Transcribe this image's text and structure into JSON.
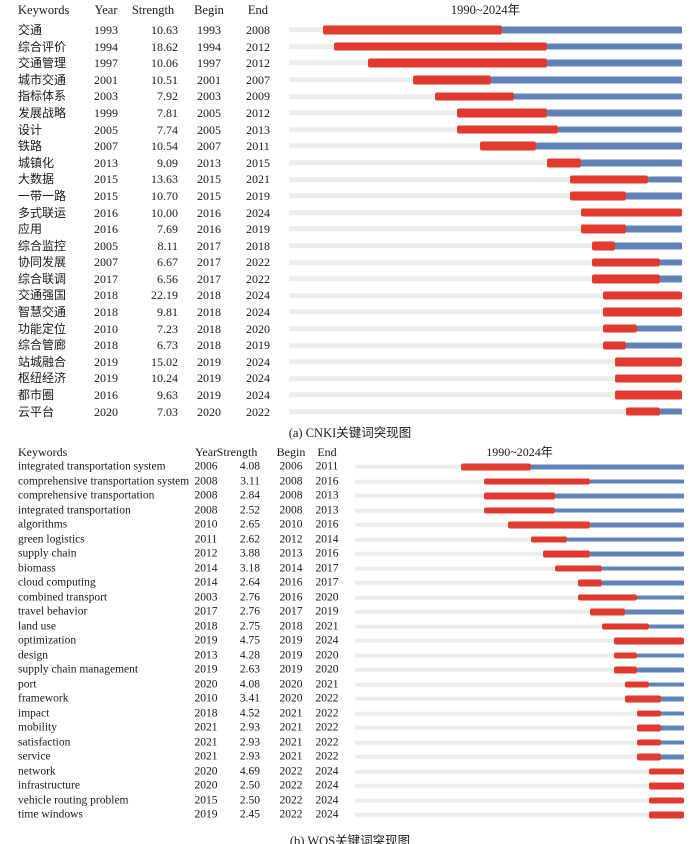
{
  "colors": {
    "burst_red": "#e23a2c",
    "timeline_blue": "#5f82b8",
    "track_gray": "#e9eee8",
    "text": "#1a1a1a",
    "background": "#ffffff"
  },
  "chart_data": [
    {
      "type": "bar",
      "subtype": "keyword-burst-timeline",
      "caption": "(a)  CNKI关键词突现图",
      "timeline_title": "1990~2024年",
      "columns": {
        "keywords": "Keywords",
        "year": "Year",
        "strength": "Strength",
        "begin": "Begin",
        "end": "End"
      },
      "xlim": [
        1990,
        2024
      ],
      "rows": [
        {
          "keyword": "交通",
          "year": 1993,
          "strength": "10.63",
          "begin": 1993,
          "end": 2008
        },
        {
          "keyword": "综合评价",
          "year": 1994,
          "strength": "18.62",
          "begin": 1994,
          "end": 2012
        },
        {
          "keyword": "交通管理",
          "year": 1997,
          "strength": "10.06",
          "begin": 1997,
          "end": 2012
        },
        {
          "keyword": "城市交通",
          "year": 2001,
          "strength": "10.51",
          "begin": 2001,
          "end": 2007
        },
        {
          "keyword": "指标体系",
          "year": 2003,
          "strength": "7.92",
          "begin": 2003,
          "end": 2009
        },
        {
          "keyword": "发展战略",
          "year": 1999,
          "strength": "7.81",
          "begin": 2005,
          "end": 2012
        },
        {
          "keyword": "设计",
          "year": 2005,
          "strength": "7.74",
          "begin": 2005,
          "end": 2013
        },
        {
          "keyword": "铁路",
          "year": 2007,
          "strength": "10.54",
          "begin": 2007,
          "end": 2011
        },
        {
          "keyword": "城镇化",
          "year": 2013,
          "strength": "9.09",
          "begin": 2013,
          "end": 2015
        },
        {
          "keyword": "大数据",
          "year": 2015,
          "strength": "13.63",
          "begin": 2015,
          "end": 2021
        },
        {
          "keyword": "一带一路",
          "year": 2015,
          "strength": "10.70",
          "begin": 2015,
          "end": 2019
        },
        {
          "keyword": "多式联运",
          "year": 2016,
          "strength": "10.00",
          "begin": 2016,
          "end": 2024
        },
        {
          "keyword": "应用",
          "year": 2016,
          "strength": "7.69",
          "begin": 2016,
          "end": 2019
        },
        {
          "keyword": "综合监控",
          "year": 2005,
          "strength": "8.11",
          "begin": 2017,
          "end": 2018
        },
        {
          "keyword": "协同发展",
          "year": 2007,
          "strength": "6.67",
          "begin": 2017,
          "end": 2022
        },
        {
          "keyword": "综合联调",
          "year": 2017,
          "strength": "6.56",
          "begin": 2017,
          "end": 2022
        },
        {
          "keyword": "交通强国",
          "year": 2018,
          "strength": "22.19",
          "begin": 2018,
          "end": 2024
        },
        {
          "keyword": "智慧交通",
          "year": 2018,
          "strength": "9.81",
          "begin": 2018,
          "end": 2024
        },
        {
          "keyword": "功能定位",
          "year": 2010,
          "strength": "7.23",
          "begin": 2018,
          "end": 2020
        },
        {
          "keyword": "综合管廊",
          "year": 2018,
          "strength": "6.73",
          "begin": 2018,
          "end": 2019
        },
        {
          "keyword": "站城融合",
          "year": 2019,
          "strength": "15.02",
          "begin": 2019,
          "end": 2024
        },
        {
          "keyword": "枢纽经济",
          "year": 2019,
          "strength": "10.24",
          "begin": 2019,
          "end": 2024
        },
        {
          "keyword": "都市圈",
          "year": 2016,
          "strength": "9.63",
          "begin": 2019,
          "end": 2024
        },
        {
          "keyword": "云平台",
          "year": 2020,
          "strength": "7.03",
          "begin": 2020,
          "end": 2022
        }
      ]
    },
    {
      "type": "bar",
      "subtype": "keyword-burst-timeline",
      "caption": "(b)  WOS关键词突现图",
      "timeline_title": "1990~2024年",
      "columns": {
        "keywords": "Keywords",
        "year": "Year",
        "strength": "Strength",
        "begin": "Begin",
        "end": "End"
      },
      "xlim": [
        1997,
        2024
      ],
      "rows": [
        {
          "keyword": "integrated transportation system",
          "year": 2006,
          "strength": "4.08",
          "begin": 2006,
          "end": 2011
        },
        {
          "keyword": "comprehensive transportation system",
          "year": 2008,
          "strength": "3.11",
          "begin": 2008,
          "end": 2016
        },
        {
          "keyword": "comprehensive transportation",
          "year": 2008,
          "strength": "2.84",
          "begin": 2008,
          "end": 2013
        },
        {
          "keyword": "integrated transportation",
          "year": 2008,
          "strength": "2.52",
          "begin": 2008,
          "end": 2013
        },
        {
          "keyword": "algorithms",
          "year": 2010,
          "strength": "2.65",
          "begin": 2010,
          "end": 2016
        },
        {
          "keyword": "green logistics",
          "year": 2011,
          "strength": "2.62",
          "begin": 2012,
          "end": 2014
        },
        {
          "keyword": "supply chain",
          "year": 2012,
          "strength": "3.88",
          "begin": 2013,
          "end": 2016
        },
        {
          "keyword": "biomass",
          "year": 2014,
          "strength": "3.18",
          "begin": 2014,
          "end": 2017
        },
        {
          "keyword": "cloud computing",
          "year": 2014,
          "strength": "2.64",
          "begin": 2016,
          "end": 2017
        },
        {
          "keyword": "combined transport",
          "year": 2003,
          "strength": "2.76",
          "begin": 2016,
          "end": 2020
        },
        {
          "keyword": "travel behavior",
          "year": 2017,
          "strength": "2.76",
          "begin": 2017,
          "end": 2019
        },
        {
          "keyword": "land use",
          "year": 2018,
          "strength": "2.75",
          "begin": 2018,
          "end": 2021
        },
        {
          "keyword": "optimization",
          "year": 2019,
          "strength": "4.75",
          "begin": 2019,
          "end": 2024
        },
        {
          "keyword": "design",
          "year": 2013,
          "strength": "4.28",
          "begin": 2019,
          "end": 2020
        },
        {
          "keyword": "supply chain management",
          "year": 2019,
          "strength": "2.63",
          "begin": 2019,
          "end": 2020
        },
        {
          "keyword": "port",
          "year": 2020,
          "strength": "4.08",
          "begin": 2020,
          "end": 2021
        },
        {
          "keyword": "framework",
          "year": 2010,
          "strength": "3.41",
          "begin": 2020,
          "end": 2022
        },
        {
          "keyword": "impact",
          "year": 2018,
          "strength": "4.52",
          "begin": 2021,
          "end": 2022
        },
        {
          "keyword": "mobility",
          "year": 2021,
          "strength": "2.93",
          "begin": 2021,
          "end": 2022
        },
        {
          "keyword": "satisfaction",
          "year": 2021,
          "strength": "2.93",
          "begin": 2021,
          "end": 2022
        },
        {
          "keyword": "service",
          "year": 2021,
          "strength": "2.93",
          "begin": 2021,
          "end": 2022
        },
        {
          "keyword": "network",
          "year": 2020,
          "strength": "4.69",
          "begin": 2022,
          "end": 2024
        },
        {
          "keyword": "infrastructure",
          "year": 2020,
          "strength": "2.50",
          "begin": 2022,
          "end": 2024
        },
        {
          "keyword": "vehicle routing problem",
          "year": 2015,
          "strength": "2.50",
          "begin": 2022,
          "end": 2024
        },
        {
          "keyword": "time windows",
          "year": 2019,
          "strength": "2.45",
          "begin": 2022,
          "end": 2024
        }
      ]
    }
  ]
}
